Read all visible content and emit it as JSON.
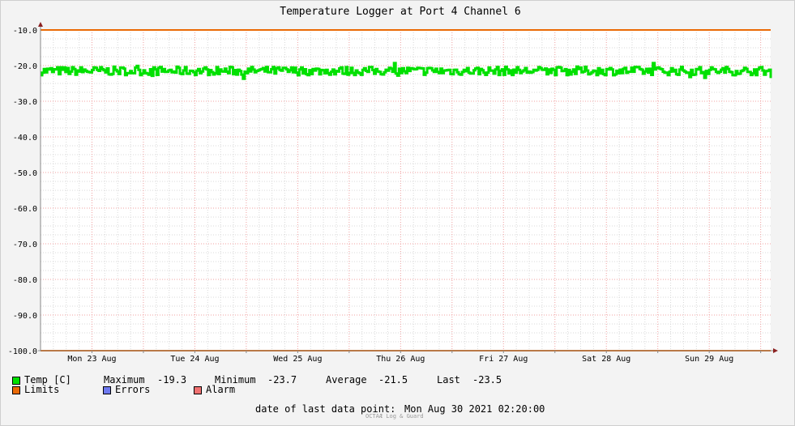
{
  "chart_data": {
    "type": "line",
    "title": "Temperature Logger at Port 4 Channel 6",
    "x_categories": [
      "Mon 23 Aug",
      "Tue 24 Aug",
      "Wed 25 Aug",
      "Thu 26 Aug",
      "Fri 27 Aug",
      "Sat 28 Aug",
      "Sun 29 Aug"
    ],
    "x_range": [
      "Mon 23 Aug 2021 00:00",
      "Mon 30 Aug 2021 02:20"
    ],
    "y_ticks": [
      "-10.0",
      "-20.0",
      "-30.0",
      "-40.0",
      "-50.0",
      "-60.0",
      "-70.0",
      "-80.0",
      "-90.0",
      "-100.0"
    ],
    "ylim": [
      -100,
      -10
    ],
    "grid": true,
    "series": [
      {
        "name": "Temp [C]",
        "color": "#00e000",
        "kind": "noisy-band",
        "min": -23.7,
        "max": -19.3,
        "average": -21.5,
        "last": -23.5
      },
      {
        "name": "Limits",
        "color": "#ea6a06",
        "values": [
          -10.0,
          -100.0
        ]
      }
    ],
    "legend_placement": "bottom"
  },
  "legend": {
    "temp_label": "Temp [C]",
    "temp_color": "#00e000",
    "limits_label": "Limits",
    "limits_color": "#ea6a06",
    "errors_label": "Errors",
    "errors_color": "#6e79f0",
    "alarm_label": "Alarm",
    "alarm_color": "#f07070"
  },
  "stats": {
    "maximum_label": "Maximum",
    "maximum_value": "-19.3",
    "minimum_label": "Minimum",
    "minimum_value": "-23.7",
    "average_label": "Average",
    "average_value": "-21.5",
    "last_label": "Last",
    "last_value": "-23.5"
  },
  "footer": {
    "last_point_label": "date of last data point:",
    "last_point_value": "Mon Aug 30 2021 02:20:00",
    "brand": "OCTAÆ Log & Guard"
  },
  "colors": {
    "background": "#f3f3f3",
    "plot_background": "#ffffff",
    "major_grid": "#f0a0a0",
    "minor_grid": "#d8d8d8",
    "axis": "#888888",
    "arrow": "#8b2020"
  }
}
